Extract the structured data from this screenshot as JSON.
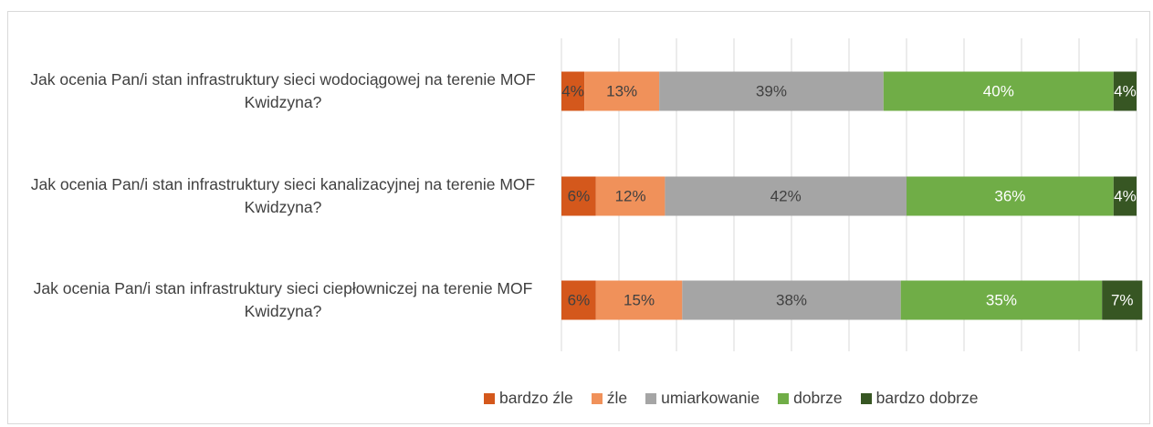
{
  "chart_data": {
    "type": "stacked_bar_horizontal",
    "categories": [
      "Jak ocenia Pan/i stan infrastruktury sieci wodociągowej na terenie MOF Kwidzyna?",
      "Jak ocenia Pan/i stan infrastruktury sieci kanalizacyjnej na terenie MOF Kwidzyna?",
      "Jak ocenia Pan/i stan infrastruktury sieci ciepłowniczej na terenie MOF Kwidzyna?"
    ],
    "series": [
      {
        "name": "bardzo źle",
        "color": "#d4581c",
        "values": [
          4,
          6,
          6
        ],
        "value_labels": [
          "4%",
          "6%",
          "6%"
        ]
      },
      {
        "name": "źle",
        "color": "#f0915a",
        "values": [
          13,
          12,
          15
        ],
        "value_labels": [
          "13%",
          "12%",
          "15%"
        ]
      },
      {
        "name": "umiarkowanie",
        "color": "#a5a5a5",
        "values": [
          39,
          42,
          38
        ],
        "value_labels": [
          "39%",
          "42%",
          "38%"
        ]
      },
      {
        "name": "dobrze",
        "color": "#70ad47",
        "values": [
          40,
          36,
          35
        ],
        "value_labels": [
          "40%",
          "36%",
          "35%"
        ]
      },
      {
        "name": "bardzo dobrze",
        "color": "#375623",
        "values": [
          4,
          4,
          7
        ],
        "value_labels": [
          "4%",
          "4%",
          "7%"
        ]
      }
    ],
    "xlim": [
      0,
      100
    ],
    "xticks": [
      0,
      10,
      20,
      30,
      40,
      50,
      60,
      70,
      80,
      90,
      100
    ],
    "grid": true,
    "legend": "bottom"
  }
}
